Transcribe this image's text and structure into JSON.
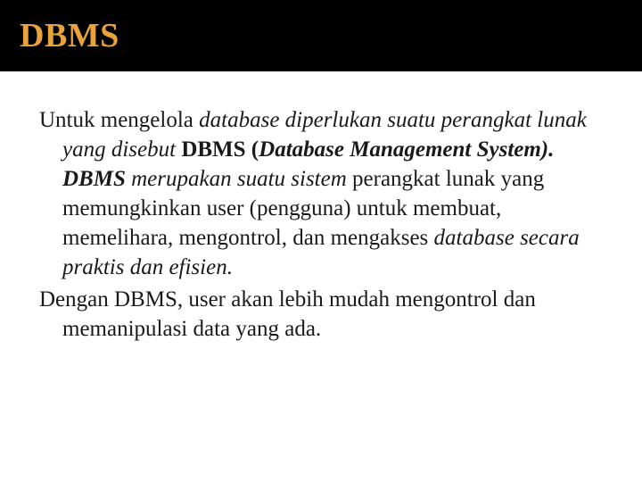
{
  "header": {
    "title": "DBMS",
    "background_color": "#000000",
    "title_color": "#e8a33d",
    "title_fontsize": 38
  },
  "body": {
    "text_color": "#1a1a1a",
    "fontsize": 25,
    "background_color": "#ffffff",
    "p1_seg1": "Untuk mengelola ",
    "p1_seg2": "database diperlukan suatu perangkat lunak yang disebut ",
    "p1_seg3": "DBMS (",
    "p1_seg4": "Database Management System). DBMS ",
    "p1_seg5": "merupakan suatu sistem ",
    "p1_seg6": "perangkat lunak yang memungkinkan user (pengguna) untuk membuat, memelihara, mengontrol, dan mengakses ",
    "p1_seg7": "database secara praktis dan efisien.",
    "p2_seg1": "Dengan DBMS, user akan lebih mudah mengontrol dan memanipulasi data yang ada."
  }
}
